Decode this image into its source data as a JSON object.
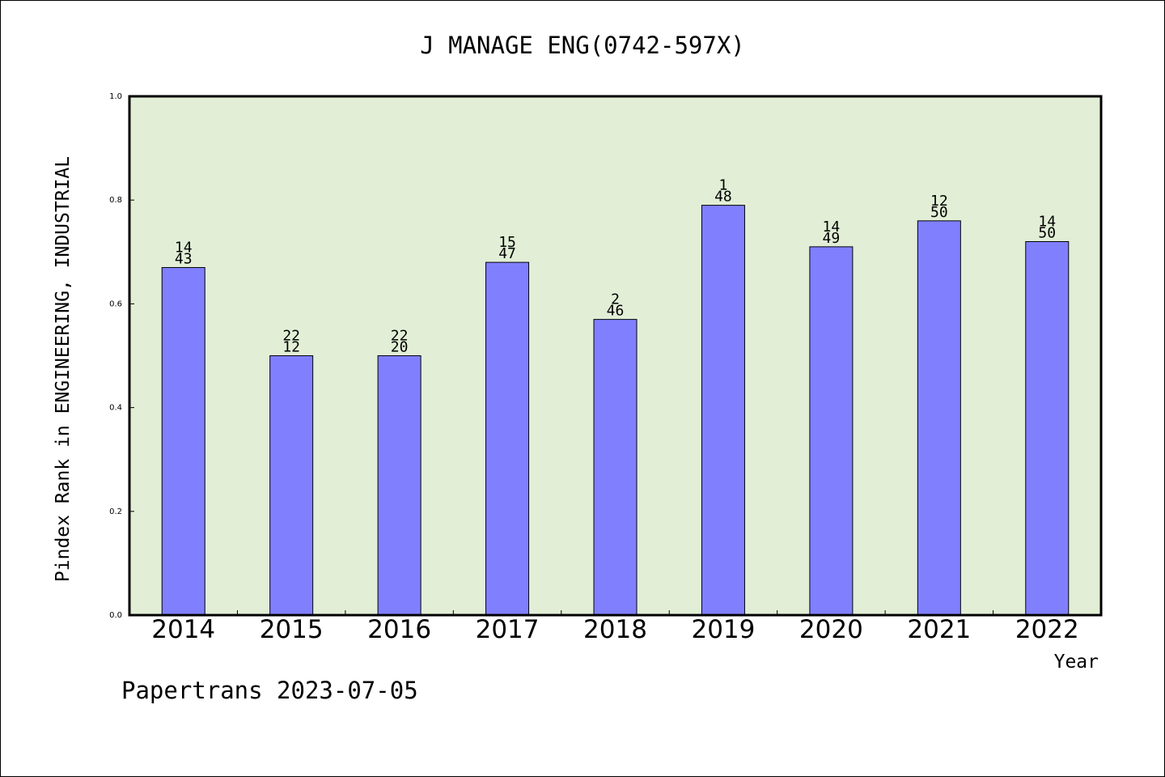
{
  "chart_data": {
    "type": "bar",
    "title": "J MANAGE ENG(0742-597X)",
    "xlabel": "Year",
    "ylabel": "Pindex Rank in ENGINEERING, INDUSTRIAL",
    "footer": "Papertrans 2023-07-05",
    "categories": [
      "2014",
      "2015",
      "2016",
      "2017",
      "2018",
      "2019",
      "2020",
      "2021",
      "2022"
    ],
    "values": [
      0.67,
      0.5,
      0.5,
      0.68,
      0.57,
      0.79,
      0.71,
      0.76,
      0.72
    ],
    "label_top": [
      "14",
      "22",
      "22",
      "15",
      "2",
      "1",
      "14",
      "12",
      "14"
    ],
    "label_bottom": [
      "43",
      "12",
      "20",
      "47",
      "46",
      "48",
      "49",
      "50",
      "50"
    ],
    "ylim": [
      0,
      1.0
    ],
    "yticks": [
      "0.0",
      "0.2",
      "0.4",
      "0.6",
      "0.8",
      "1.0"
    ],
    "grid": false,
    "colors": {
      "bar_fill": "#8080ff",
      "plot_background": "#e2efd6"
    }
  }
}
